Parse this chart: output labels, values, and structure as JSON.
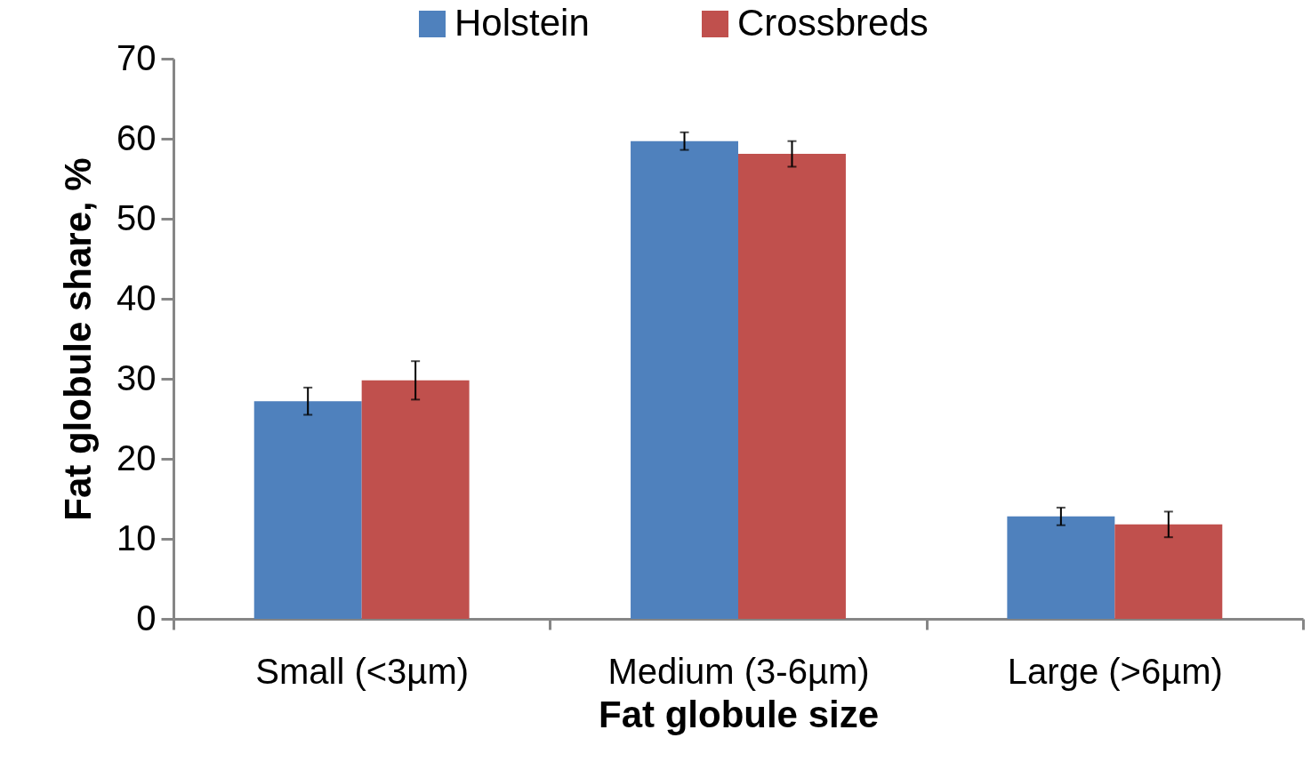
{
  "chart_data": {
    "type": "bar",
    "xlabel": "Fat globule size",
    "ylabel": "Fat globule share, %",
    "categories": [
      "Small (<3µm)",
      "Medium (3-6µm)",
      "Large (>6µm)"
    ],
    "series": [
      {
        "name": "Holstein",
        "color": "#4f81bd",
        "values": [
          27.2,
          59.7,
          12.8
        ],
        "errors": [
          1.7,
          1.1,
          1.1
        ]
      },
      {
        "name": "Crossbreds",
        "color": "#c0504d",
        "values": [
          29.8,
          58.1,
          11.8
        ],
        "errors": [
          2.4,
          1.6,
          1.6
        ]
      }
    ],
    "ylim": [
      0,
      70
    ],
    "yticks": [
      0,
      10,
      20,
      30,
      40,
      50,
      60,
      70
    ],
    "grid": false,
    "legend": "top"
  }
}
